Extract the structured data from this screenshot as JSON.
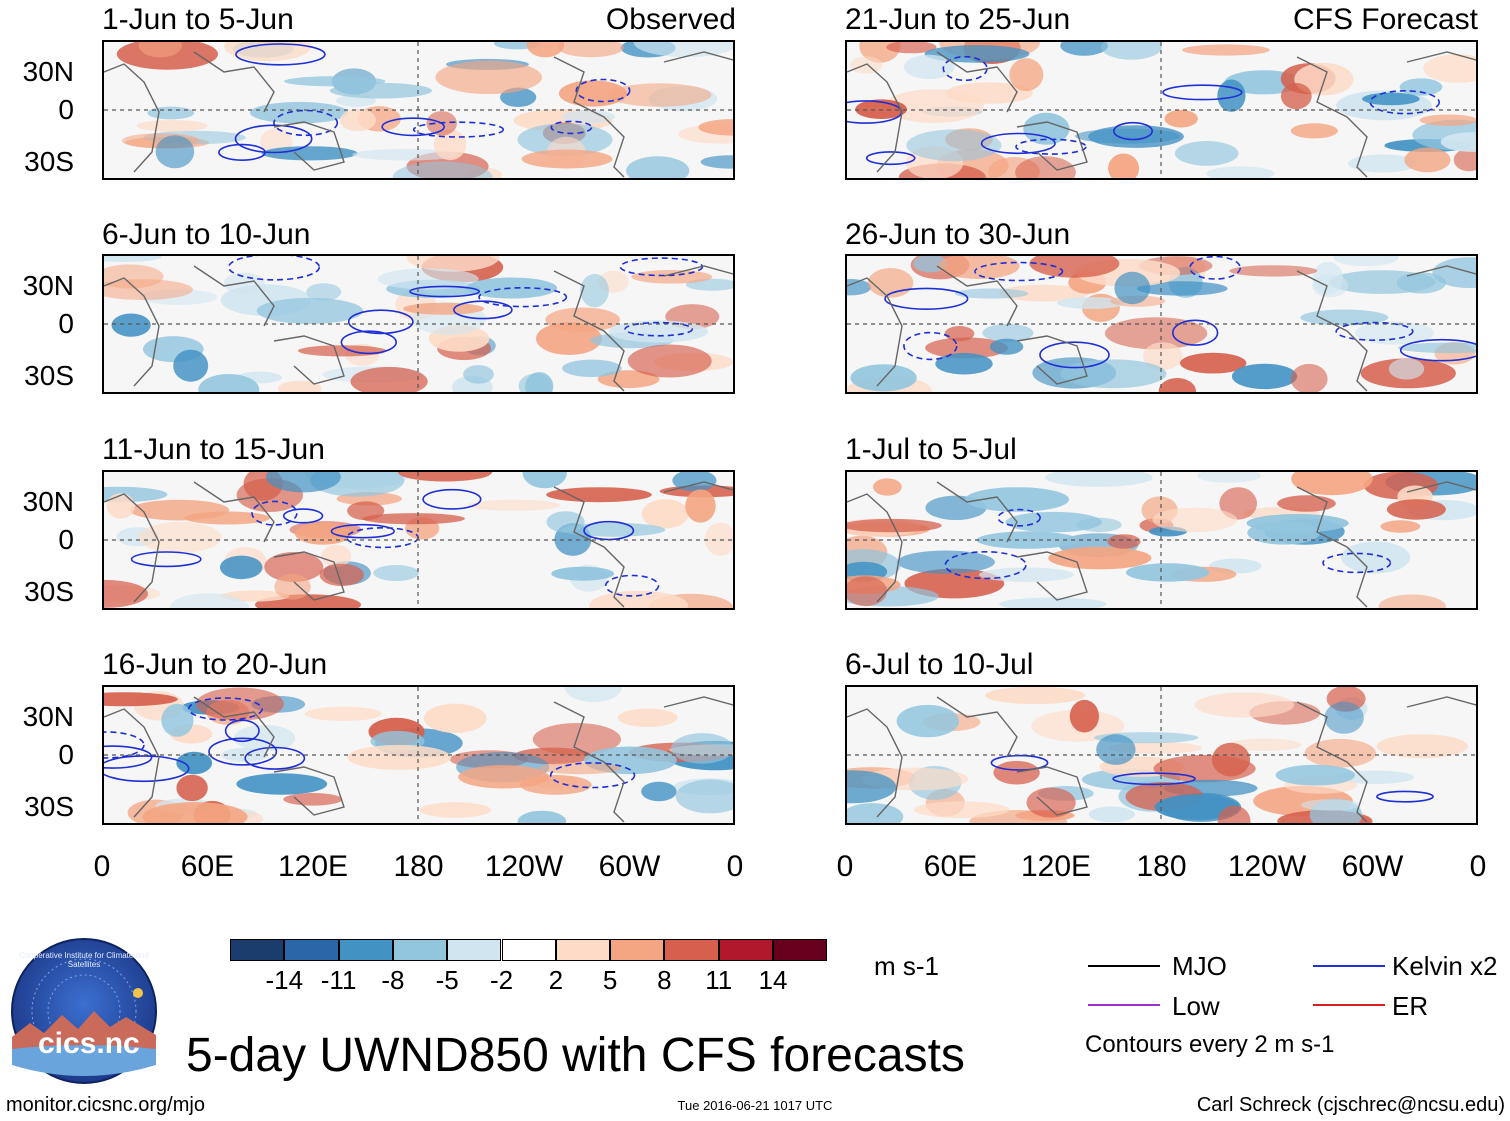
{
  "panels_left": [
    {
      "title": "1-Jun to 5-Jun",
      "tag": "Observed"
    },
    {
      "title": "6-Jun to 10-Jun",
      "tag": ""
    },
    {
      "title": "11-Jun to 15-Jun",
      "tag": ""
    },
    {
      "title": "16-Jun to 20-Jun",
      "tag": ""
    }
  ],
  "panels_right": [
    {
      "title": "21-Jun to 25-Jun",
      "tag": "CFS Forecast"
    },
    {
      "title": "26-Jun to 30-Jun",
      "tag": ""
    },
    {
      "title": "1-Jul to 5-Jul",
      "tag": ""
    },
    {
      "title": "6-Jul to 10-Jul",
      "tag": ""
    }
  ],
  "lat_labels": [
    "30N",
    "0",
    "30S"
  ],
  "lon_labels": [
    "0",
    "60E",
    "120E",
    "180",
    "120W",
    "60W",
    "0"
  ],
  "colorbar": {
    "colors": [
      "#1b3d6e",
      "#2a66a8",
      "#4392c4",
      "#92c5de",
      "#d1e5f0",
      "#ffffff",
      "#fddbc7",
      "#f4a582",
      "#d6604d",
      "#b2182b",
      "#67001f"
    ],
    "labels": [
      "-14",
      "-11",
      "-8",
      "-5",
      "-2",
      "2",
      "5",
      "8",
      "11",
      "14"
    ],
    "units": "m s-1"
  },
  "legend": {
    "mjo": {
      "label": "MJO",
      "color": "#000000"
    },
    "low": {
      "label": "Low",
      "color": "#9933cc"
    },
    "kelvin": {
      "label": "Kelvin x2",
      "color": "#1f2fd6"
    },
    "er": {
      "label": "ER",
      "color": "#d81f1f"
    },
    "note": "Contours every 2 m s-1"
  },
  "logo_text": "cics.nc",
  "logo_ring_text": "Cooperative Institute for Climate and Satellites",
  "main_title": "5-day UWND850 with CFS forecasts",
  "footer": {
    "url": "monitor.cicsnc.org/mjo",
    "timestamp": "Tue 2016-06-21 1017 UTC",
    "author": "Carl Schreck (cjschrec@ncsu.edu)"
  }
}
